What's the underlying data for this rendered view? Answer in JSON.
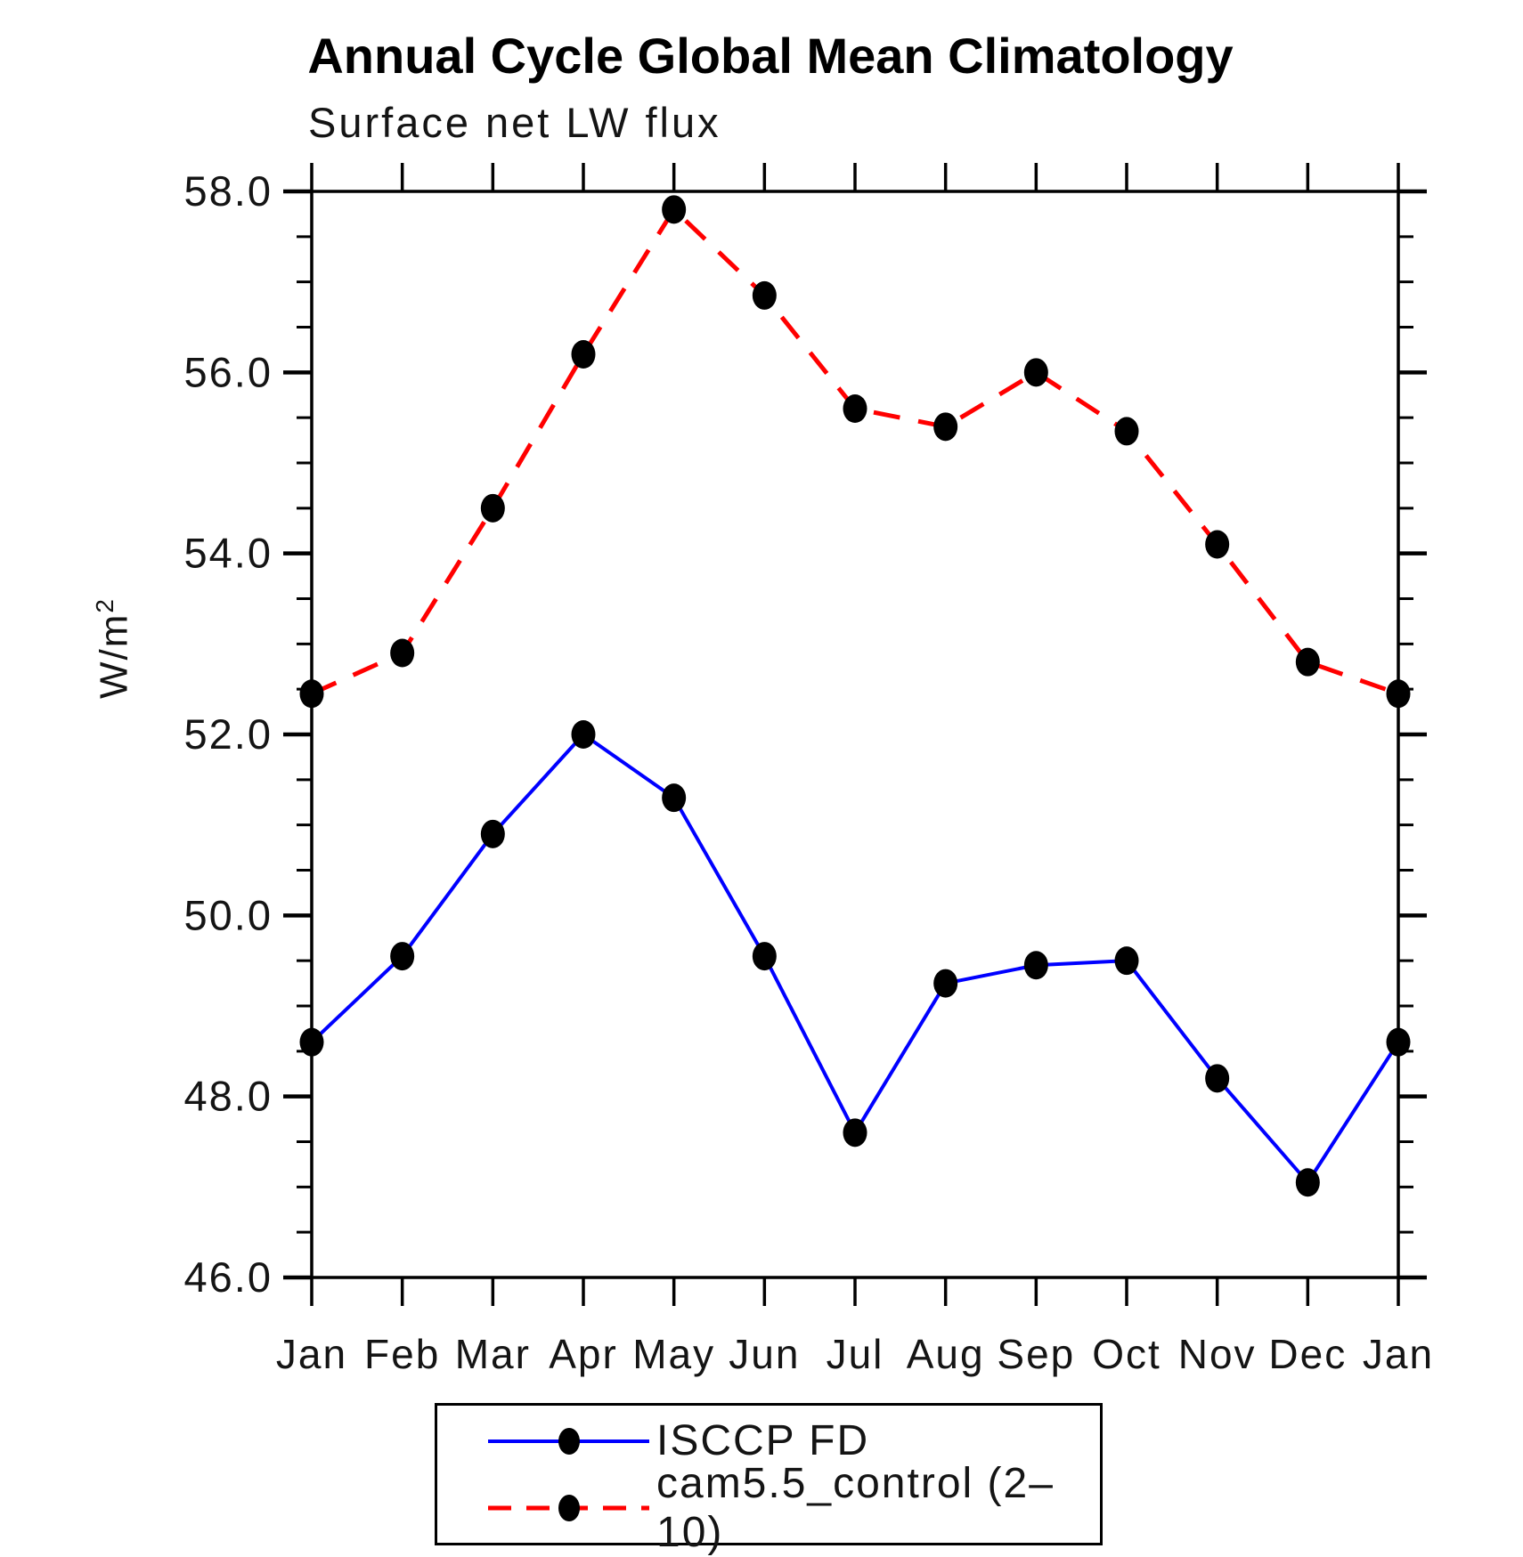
{
  "page": {
    "title": "Annual Cycle Global Mean Climatology",
    "subtitle": "Surface net LW flux",
    "ylabel_base": "W/m",
    "ylabel_exponent": "2"
  },
  "chart_data": {
    "type": "line",
    "title": "Annual Cycle Global Mean Climatology",
    "subtitle": "Surface net LW flux",
    "ylabel": "W/m²",
    "categories": [
      "Jan",
      "Feb",
      "Mar",
      "Apr",
      "May",
      "Jun",
      "Jul",
      "Aug",
      "Sep",
      "Oct",
      "Nov",
      "Dec",
      "Jan"
    ],
    "series": [
      {
        "name": "ISCCP FD",
        "line_style": "solid",
        "color": "#0000ff",
        "marker": "filled-circle",
        "marker_color": "#000000",
        "values": [
          48.6,
          49.55,
          50.9,
          52.0,
          51.3,
          49.55,
          47.6,
          49.25,
          49.45,
          49.5,
          48.2,
          47.05,
          48.6
        ]
      },
      {
        "name": "cam5.5_control (2–10)",
        "line_style": "dashed",
        "color": "#ff0000",
        "marker": "filled-circle",
        "marker_color": "#000000",
        "values": [
          52.45,
          52.9,
          54.5,
          56.2,
          57.8,
          56.85,
          55.6,
          55.4,
          56.0,
          55.35,
          54.1,
          52.8,
          52.45
        ]
      }
    ],
    "ylim": [
      46.0,
      58.0
    ],
    "ytick_major_step": 2.0,
    "ytick_minor_step": 0.5,
    "ytick_labels": [
      "58.0",
      "56.0",
      "54.0",
      "52.0",
      "50.0",
      "48.0",
      "46.0"
    ],
    "grid": false,
    "legend_position": "bottom-center"
  },
  "legend": {
    "entries": [
      {
        "label": "ISCCP FD"
      },
      {
        "label": "cam5.5_control (2–10)"
      }
    ]
  }
}
